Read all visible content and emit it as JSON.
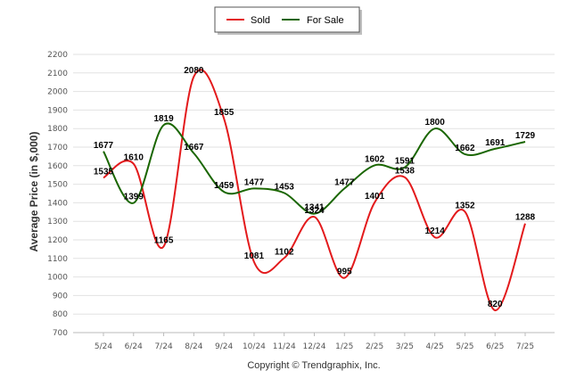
{
  "chart_data": {
    "type": "line",
    "categories": [
      "5/24",
      "6/24",
      "7/24",
      "8/24",
      "9/24",
      "10/24",
      "11/24",
      "12/24",
      "1/25",
      "2/25",
      "3/25",
      "4/25",
      "5/25",
      "6/25",
      "7/25"
    ],
    "series": [
      {
        "name": "Sold",
        "color": "#e31a1c",
        "values": [
          1535,
          1610,
          1165,
          2080,
          1855,
          1081,
          1102,
          1324,
          995,
          1401,
          1538,
          1214,
          1352,
          820,
          1288
        ]
      },
      {
        "name": "For Sale",
        "color": "#1a6600",
        "values": [
          1677,
          1399,
          1819,
          1667,
          1459,
          1477,
          1453,
          1341,
          1477,
          1602,
          1591,
          1800,
          1662,
          1691,
          1729
        ]
      }
    ],
    "ylabel": "Average Price (in $,000)",
    "xlabel": "",
    "ylim": [
      700,
      2200
    ],
    "yticks": [
      700,
      800,
      900,
      1000,
      1100,
      1200,
      1300,
      1400,
      1500,
      1600,
      1700,
      1800,
      1900,
      2000,
      2100,
      2200
    ],
    "grid": true,
    "legend": "top-center"
  },
  "footer": "Copyright © Trendgraphix, Inc."
}
